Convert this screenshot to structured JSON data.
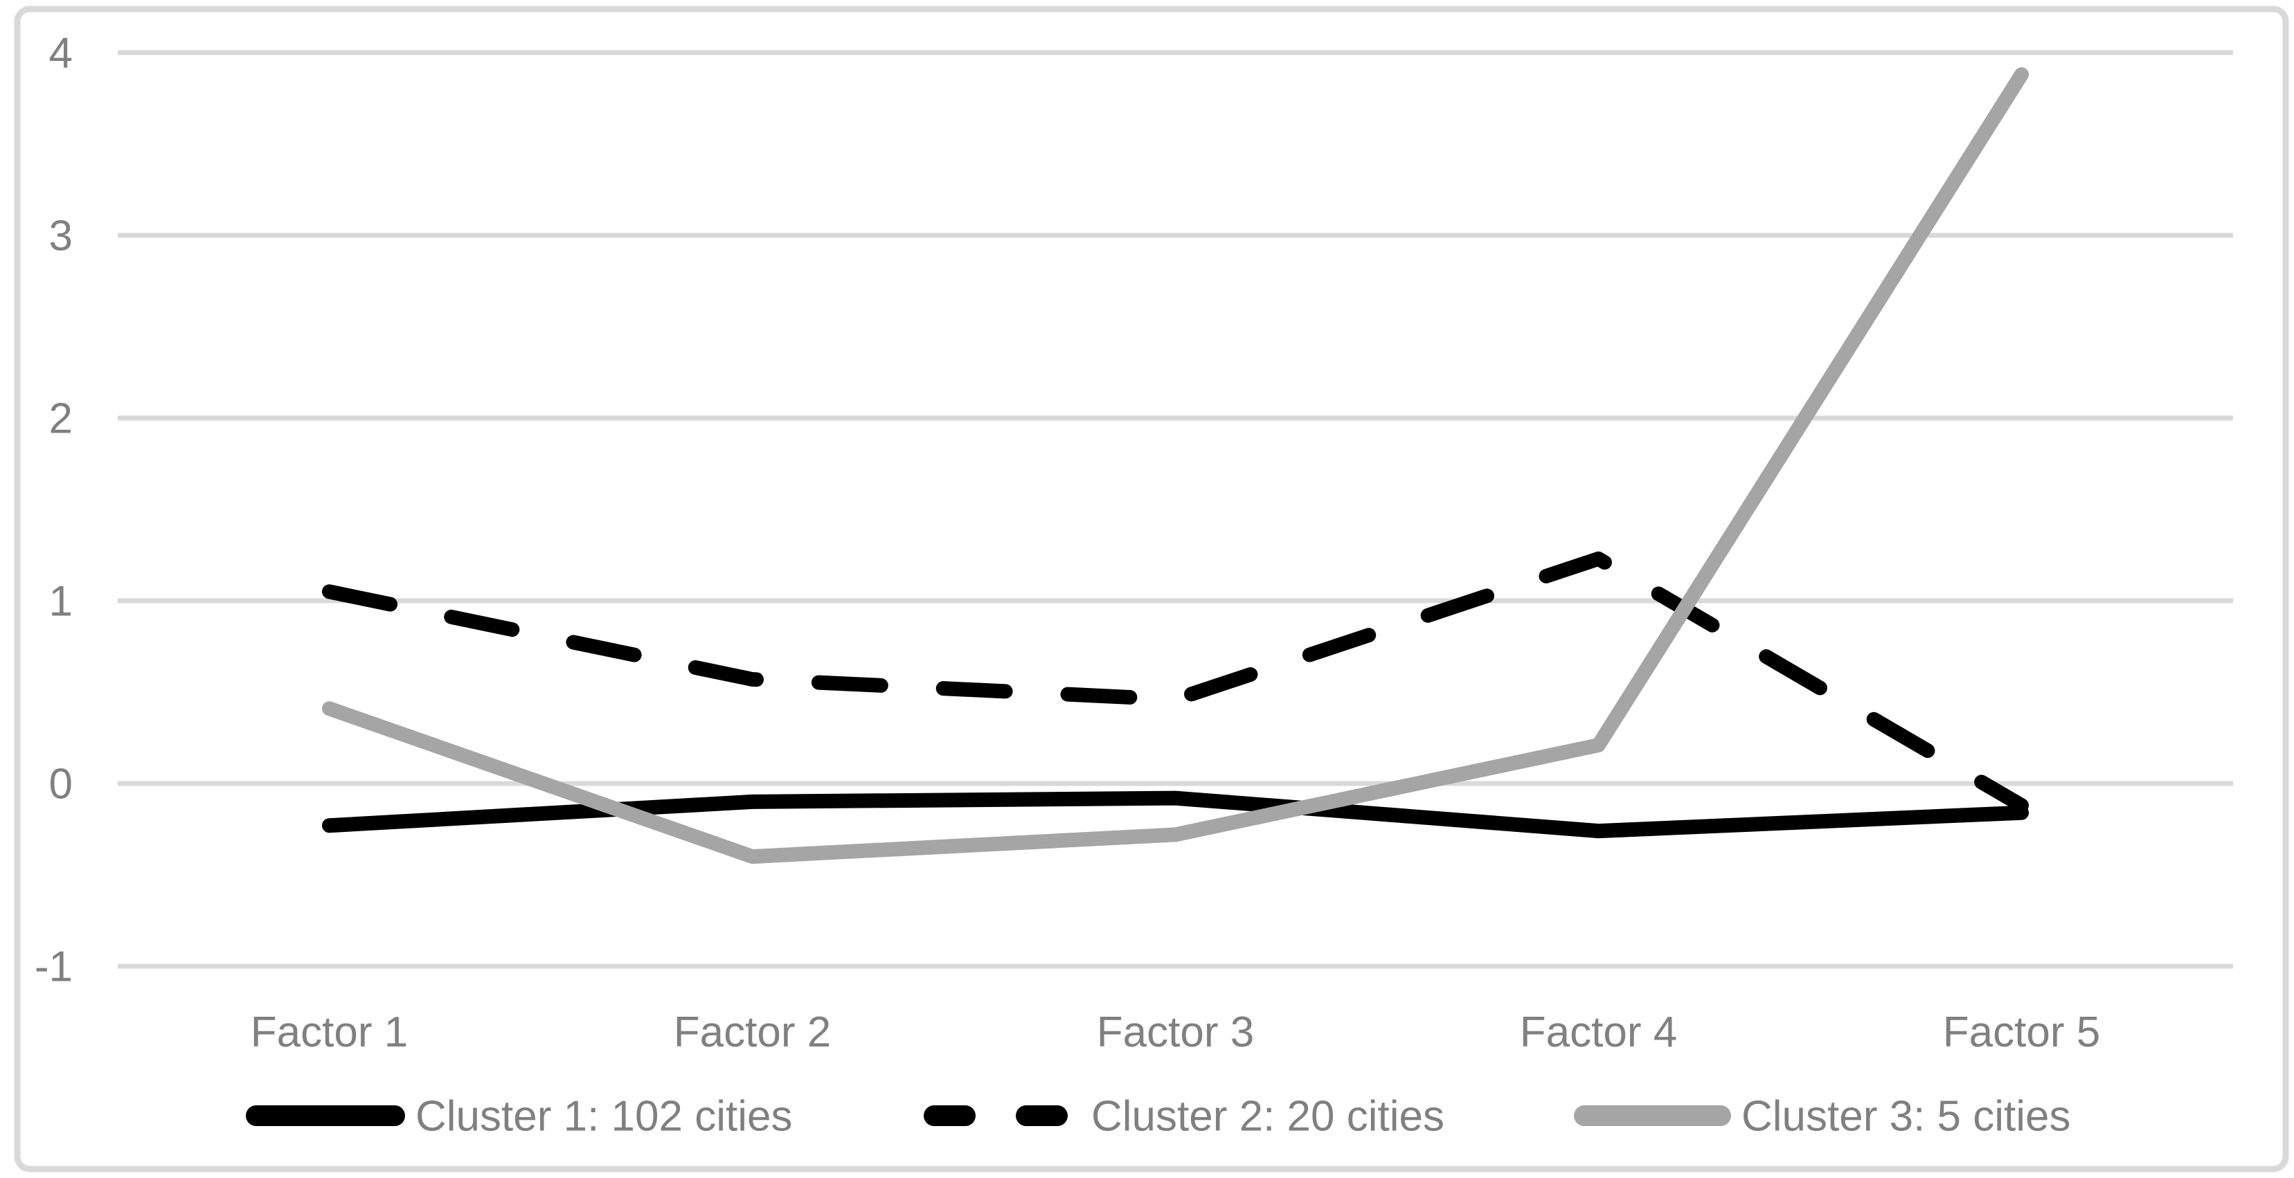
{
  "chart_data": {
    "type": "line",
    "title": "",
    "xlabel": "",
    "ylabel": "",
    "categories": [
      "Factor 1",
      "Factor 2",
      "Factor 3",
      "Factor 4",
      "Factor 5"
    ],
    "series": [
      {
        "name": "Cluster 1: 102 cities",
        "line_style": "solid",
        "color": "#000000",
        "values": [
          -0.23,
          -0.1,
          -0.08,
          -0.26,
          -0.16
        ]
      },
      {
        "name": "Cluster 2: 20 cities",
        "line_style": "dashed",
        "color": "#000000",
        "values": [
          1.05,
          0.57,
          0.46,
          1.23,
          -0.12
        ]
      },
      {
        "name": "Cluster 3: 5 cities",
        "line_style": "solid",
        "color": "#A5A5A5",
        "values": [
          0.41,
          -0.4,
          -0.28,
          0.21,
          3.88
        ]
      }
    ],
    "ylim": [
      -1,
      4
    ],
    "y_ticks": [
      4,
      3,
      2,
      1,
      0,
      -1
    ],
    "grid": true,
    "legend_position": "bottom",
    "colors": {
      "gridlines": "#D9D9D9",
      "axis_text": "#808080",
      "chart_border": "#D9D9D9",
      "background": "#FFFFFF"
    }
  }
}
